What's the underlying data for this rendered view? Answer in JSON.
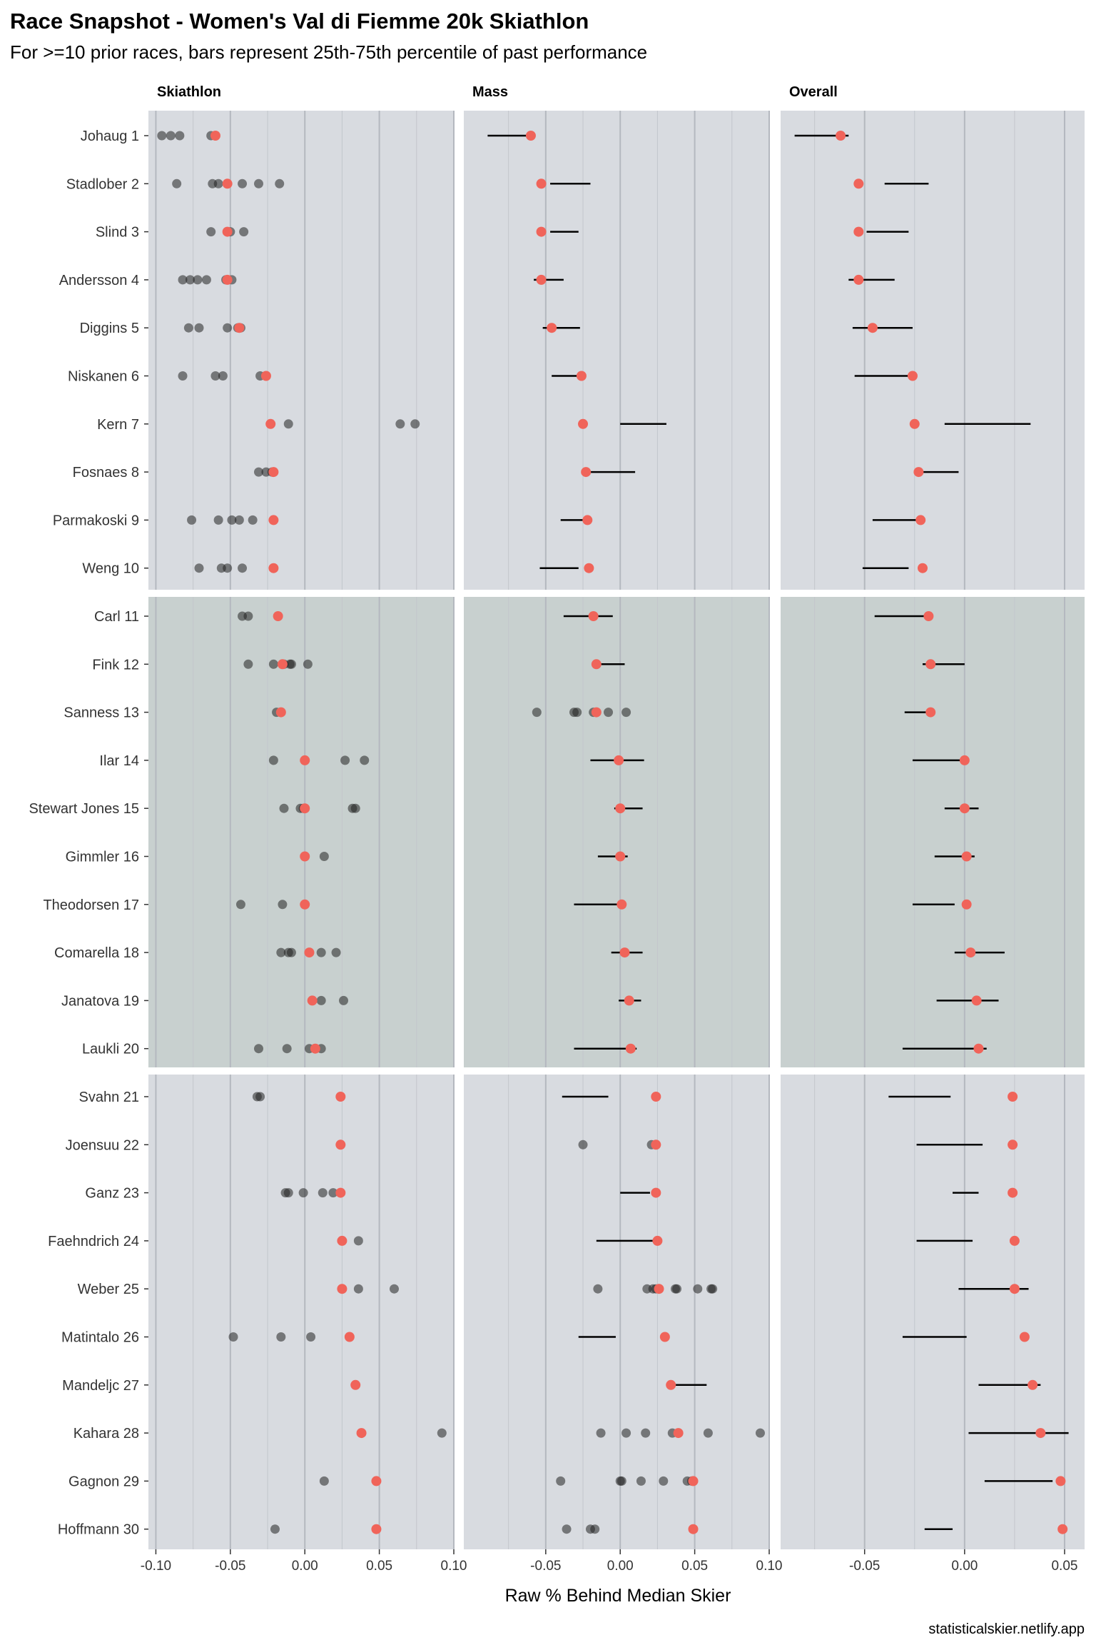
{
  "chart_data": {
    "type": "scatter",
    "title": "Race Snapshot -  Women's Val di Fiemme 20k  Skiathlon",
    "subtitle": "For >=10 prior races, bars represent 25th-75th percentile of past performance",
    "xlabel": "Raw % Behind Median Skier",
    "caption": "statisticalskier.netlify.app",
    "grid": true,
    "colors": {
      "current": "#f0645a",
      "past": "#222222",
      "bar": "#000000",
      "panel_1": "#d8dbe0",
      "panel_2": "#c8d0cf",
      "panel_3": "#d8dbe0"
    },
    "panels": [
      {
        "name": "Skiathlon",
        "xlim": [
          -0.105,
          0.1
        ],
        "ticks": [
          -0.1,
          -0.05,
          0.0,
          0.05,
          0.1
        ],
        "tick_labels": [
          "-0.10",
          "-0.05",
          "0.00",
          "0.05",
          "0.10"
        ]
      },
      {
        "name": "Mass",
        "xlim": [
          -0.105,
          0.1
        ],
        "ticks": [
          -0.05,
          0.0,
          0.05,
          0.1
        ],
        "tick_labels": [
          "-0.05",
          "0.00",
          "0.05",
          "0.10"
        ]
      },
      {
        "name": "Overall",
        "xlim": [
          -0.092,
          0.06
        ],
        "ticks": [
          -0.05,
          0.0,
          0.05
        ],
        "tick_labels": [
          "-0.05",
          "0.00",
          "0.05"
        ]
      }
    ],
    "skiers": [
      {
        "label": "Johaug 1",
        "current": [
          -0.06,
          -0.06,
          -0.062
        ],
        "past": [
          [
            -0.096,
            -0.09,
            -0.084,
            -0.063
          ],
          [],
          []
        ],
        "bars": [
          null,
          [
            -0.089,
            -0.057
          ],
          [
            -0.085,
            -0.058
          ]
        ]
      },
      {
        "label": "Stadlober 2",
        "current": [
          -0.052,
          -0.053,
          -0.053
        ],
        "past": [
          [
            -0.086,
            -0.062,
            -0.058,
            -0.042,
            -0.031,
            -0.017
          ],
          [],
          []
        ],
        "bars": [
          null,
          [
            -0.047,
            -0.02
          ],
          [
            -0.04,
            -0.018
          ]
        ]
      },
      {
        "label": "Slind 3",
        "current": [
          -0.052,
          -0.053,
          -0.053
        ],
        "past": [
          [
            -0.063,
            -0.05,
            -0.041
          ],
          [],
          []
        ],
        "bars": [
          null,
          [
            -0.047,
            -0.028
          ],
          [
            -0.049,
            -0.028
          ]
        ]
      },
      {
        "label": "Andersson 4",
        "current": [
          -0.052,
          -0.053,
          -0.053
        ],
        "past": [
          [
            -0.082,
            -0.077,
            -0.072,
            -0.066,
            -0.053,
            -0.049
          ],
          [],
          []
        ],
        "bars": [
          null,
          [
            -0.058,
            -0.038
          ],
          [
            -0.058,
            -0.035
          ]
        ]
      },
      {
        "label": "Diggins 5",
        "current": [
          -0.044,
          -0.046,
          -0.046
        ],
        "past": [
          [
            -0.078,
            -0.071,
            -0.052,
            -0.045,
            -0.044,
            -0.043
          ],
          [],
          []
        ],
        "bars": [
          null,
          [
            -0.052,
            -0.027
          ],
          [
            -0.056,
            -0.026
          ]
        ]
      },
      {
        "label": "Niskanen 6",
        "current": [
          -0.026,
          -0.026,
          -0.026
        ],
        "past": [
          [
            -0.082,
            -0.06,
            -0.055,
            -0.03,
            -0.026
          ],
          [],
          []
        ],
        "bars": [
          null,
          [
            -0.046,
            -0.026
          ],
          [
            -0.055,
            -0.026
          ]
        ]
      },
      {
        "label": "Kern 7",
        "current": [
          -0.023,
          -0.025,
          -0.025
        ],
        "past": [
          [
            -0.011,
            0.064,
            0.074
          ],
          [],
          []
        ],
        "bars": [
          null,
          [
            0.0,
            0.031
          ],
          [
            -0.01,
            0.033
          ]
        ]
      },
      {
        "label": "Fosnaes 8",
        "current": [
          -0.021,
          -0.023,
          -0.023
        ],
        "past": [
          [
            -0.031,
            -0.026,
            -0.022
          ],
          [],
          []
        ],
        "bars": [
          null,
          [
            -0.021,
            0.01
          ],
          [
            -0.024,
            -0.003
          ]
        ]
      },
      {
        "label": "Parmakoski 9",
        "current": [
          -0.021,
          -0.022,
          -0.022
        ],
        "past": [
          [
            -0.076,
            -0.058,
            -0.049,
            -0.044,
            -0.035
          ],
          [],
          []
        ],
        "bars": [
          null,
          [
            -0.04,
            -0.022
          ],
          [
            -0.046,
            -0.022
          ]
        ]
      },
      {
        "label": "Weng 10",
        "current": [
          -0.021,
          -0.021,
          -0.021
        ],
        "past": [
          [
            -0.071,
            -0.056,
            -0.052,
            -0.042
          ],
          [],
          []
        ],
        "bars": [
          null,
          [
            -0.054,
            -0.028
          ],
          [
            -0.051,
            -0.028
          ]
        ]
      },
      {
        "label": "Carl 11",
        "current": [
          -0.018,
          -0.018,
          -0.018
        ],
        "past": [
          [
            -0.042,
            -0.038
          ],
          [],
          []
        ],
        "bars": [
          null,
          [
            -0.038,
            -0.005
          ],
          [
            -0.045,
            -0.018
          ]
        ]
      },
      {
        "label": "Fink 12",
        "current": [
          -0.015,
          -0.016,
          -0.017
        ],
        "past": [
          [
            -0.038,
            -0.021,
            -0.014,
            -0.01,
            -0.009,
            0.002
          ],
          [],
          []
        ],
        "bars": [
          null,
          [
            -0.016,
            0.003
          ],
          [
            -0.021,
            0.0
          ]
        ]
      },
      {
        "label": "Sanness 13",
        "current": [
          -0.016,
          -0.016,
          -0.017
        ],
        "past": [
          [
            -0.019
          ],
          [
            -0.056,
            -0.031,
            -0.029,
            -0.018,
            -0.008,
            0.004
          ],
          []
        ],
        "bars": [
          null,
          null,
          [
            -0.03,
            -0.016
          ]
        ]
      },
      {
        "label": "Ilar 14",
        "current": [
          0.0,
          -0.001,
          0.0
        ],
        "past": [
          [
            -0.021,
            0.0,
            0.027,
            0.04
          ],
          [],
          []
        ],
        "bars": [
          null,
          [
            -0.02,
            0.016
          ],
          [
            -0.026,
            0.002
          ]
        ]
      },
      {
        "label": "Stewart Jones 15",
        "current": [
          0.0,
          0.0,
          0.0
        ],
        "past": [
          [
            -0.014,
            -0.003,
            -0.001,
            0.0,
            0.032,
            0.034
          ],
          [],
          []
        ],
        "bars": [
          null,
          [
            -0.004,
            0.015
          ],
          [
            -0.01,
            0.007
          ]
        ]
      },
      {
        "label": "Gimmler 16",
        "current": [
          0.0,
          0.0,
          0.001
        ],
        "past": [
          [
            0.013
          ],
          [],
          []
        ],
        "bars": [
          null,
          [
            -0.015,
            0.005
          ],
          [
            -0.015,
            0.005
          ]
        ]
      },
      {
        "label": "Theodorsen 17",
        "current": [
          0.0,
          0.001,
          0.001
        ],
        "past": [
          [
            -0.043,
            -0.015
          ],
          [],
          []
        ],
        "bars": [
          null,
          [
            -0.031,
            0.001
          ],
          [
            -0.026,
            -0.005
          ]
        ]
      },
      {
        "label": "Comarella 18",
        "current": [
          0.003,
          0.003,
          0.003
        ],
        "past": [
          [
            -0.016,
            -0.011,
            -0.009,
            0.011,
            0.021
          ],
          [],
          []
        ],
        "bars": [
          null,
          [
            -0.006,
            0.015
          ],
          [
            -0.005,
            0.02
          ]
        ]
      },
      {
        "label": "Janatova 19",
        "current": [
          0.005,
          0.006,
          0.006
        ],
        "past": [
          [
            0.011,
            0.026
          ],
          [],
          []
        ],
        "bars": [
          null,
          [
            -0.001,
            0.014
          ],
          [
            -0.014,
            0.017
          ]
        ]
      },
      {
        "label": "Laukli 20",
        "current": [
          0.007,
          0.007,
          0.007
        ],
        "past": [
          [
            -0.031,
            -0.012,
            0.003,
            0.011
          ],
          [],
          []
        ],
        "bars": [
          null,
          [
            -0.031,
            0.011
          ],
          [
            -0.031,
            0.011
          ]
        ]
      },
      {
        "label": "Svahn 21",
        "current": [
          0.024,
          0.024,
          0.024
        ],
        "past": [
          [
            -0.032,
            -0.03
          ],
          [],
          []
        ],
        "bars": [
          null,
          [
            -0.039,
            -0.008
          ],
          [
            -0.038,
            -0.007
          ]
        ]
      },
      {
        "label": "Joensuu 22",
        "current": [
          0.024,
          0.024,
          0.024
        ],
        "past": [
          [],
          [
            -0.025,
            0.021
          ],
          []
        ],
        "bars": [
          null,
          null,
          [
            -0.024,
            0.009
          ]
        ]
      },
      {
        "label": "Ganz 23",
        "current": [
          0.024,
          0.024,
          0.024
        ],
        "past": [
          [
            -0.013,
            -0.011,
            -0.001,
            0.012,
            0.019
          ],
          [],
          []
        ],
        "bars": [
          null,
          [
            0.0,
            0.02
          ],
          [
            -0.006,
            0.007
          ]
        ]
      },
      {
        "label": "Faehndrich 24",
        "current": [
          0.025,
          0.025,
          0.025
        ],
        "past": [
          [
            0.036
          ],
          [],
          []
        ],
        "bars": [
          null,
          [
            -0.016,
            0.022
          ],
          [
            -0.024,
            0.004
          ]
        ]
      },
      {
        "label": "Weber 25",
        "current": [
          0.025,
          0.026,
          0.025
        ],
        "past": [
          [
            0.036,
            0.06
          ],
          [
            -0.015,
            0.018,
            0.022,
            0.024,
            0.037,
            0.038,
            0.052,
            0.061,
            0.062
          ],
          []
        ],
        "bars": [
          null,
          null,
          [
            -0.003,
            0.032
          ]
        ]
      },
      {
        "label": "Matintalo 26",
        "current": [
          0.03,
          0.03,
          0.03
        ],
        "past": [
          [
            -0.048,
            -0.016,
            0.004,
            0.03
          ],
          [],
          []
        ],
        "bars": [
          null,
          [
            -0.028,
            -0.003
          ],
          [
            -0.031,
            0.001
          ]
        ]
      },
      {
        "label": "Mandeljc 27",
        "current": [
          0.034,
          0.034,
          0.034
        ],
        "past": [
          [],
          [],
          []
        ],
        "bars": [
          null,
          [
            0.034,
            0.058
          ],
          [
            0.007,
            0.038
          ]
        ]
      },
      {
        "label": "Kahara 28",
        "current": [
          0.038,
          0.039,
          0.038
        ],
        "past": [
          [
            0.092
          ],
          [
            -0.013,
            0.004,
            0.017,
            0.035,
            0.059,
            0.094
          ],
          []
        ],
        "bars": [
          null,
          null,
          [
            0.002,
            0.052
          ]
        ]
      },
      {
        "label": "Gagnon 29",
        "current": [
          0.048,
          0.049,
          0.048
        ],
        "past": [
          [
            0.013
          ],
          [
            -0.04,
            0.0,
            0.001,
            0.014,
            0.029,
            0.045,
            0.048
          ],
          []
        ],
        "bars": [
          null,
          null,
          [
            0.01,
            0.044
          ]
        ]
      },
      {
        "label": "Hoffmann 30",
        "current": [
          0.048,
          0.049,
          0.049
        ],
        "past": [
          [
            -0.02
          ],
          [
            -0.036,
            -0.02,
            -0.017
          ],
          []
        ],
        "bars": [
          null,
          null,
          [
            -0.02,
            -0.006
          ]
        ]
      }
    ]
  }
}
